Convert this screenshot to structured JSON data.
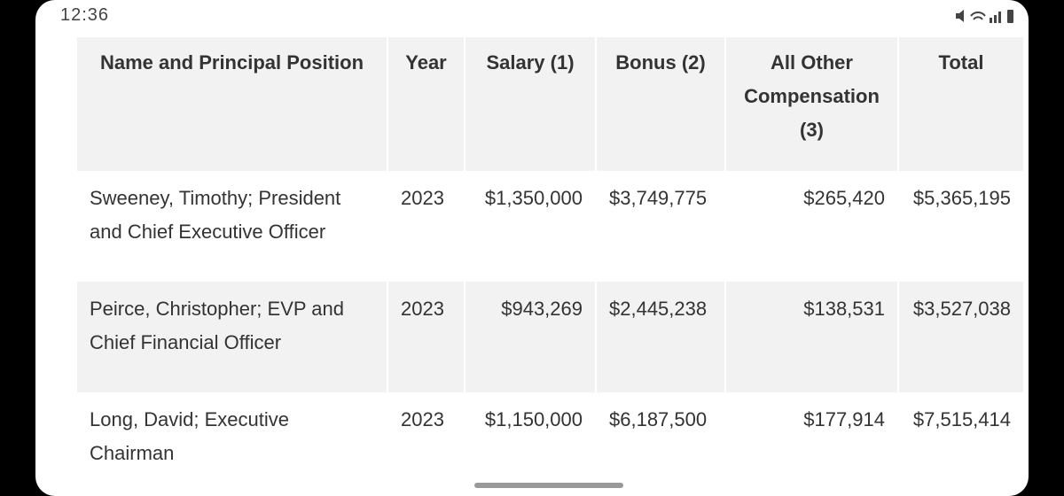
{
  "status_bar": {
    "time": "12:36"
  },
  "table": {
    "header": [
      "Name and Principal Position",
      "Year",
      "Salary (1)",
      "Bonus (2)",
      "All Other Compensation (3)",
      "Total"
    ],
    "rows": [
      [
        "Sweeney, Timothy; President and Chief Executive Officer",
        "2023",
        "$1,350,000",
        "$3,749,775",
        "$265,420",
        "$5,365,195"
      ],
      [
        "Peirce, Christopher; EVP and Chief Financial Officer",
        "2023",
        "$943,269",
        "$2,445,238",
        "$138,531",
        "$3,527,038"
      ],
      [
        "Long, David; Executive Chairman",
        "2023",
        "$1,150,000",
        "$6,187,500",
        "$177,914",
        "$7,515,414"
      ]
    ]
  }
}
